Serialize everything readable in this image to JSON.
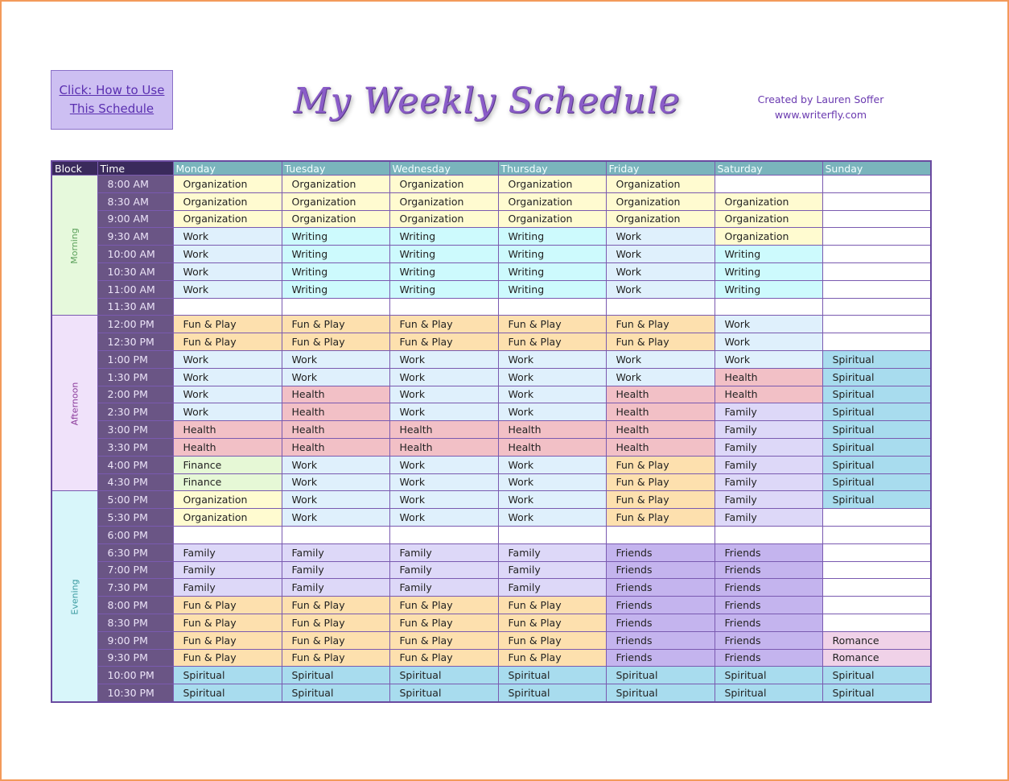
{
  "how_to": {
    "line1": "Click:  How to Use",
    "line2": "This Schedule"
  },
  "title": "My Weekly Schedule",
  "credit": {
    "line1": "Created by Lauren Soffer",
    "line2": "www.writerfly.com"
  },
  "headers": {
    "block": "Block",
    "time": "Time",
    "days": [
      "Monday",
      "Tuesday",
      "Wednesday",
      "Thursday",
      "Friday",
      "Saturday",
      "Sunday"
    ]
  },
  "blocks": [
    {
      "label": "Morning",
      "rows": 8,
      "color": "#e6f9dc",
      "text_color": "#5aa05a"
    },
    {
      "label": "Afternoon",
      "rows": 10,
      "color": "#f0e2fa",
      "text_color": "#8a3a9a"
    },
    {
      "label": "Evening",
      "rows": 12,
      "color": "#d8f6fa",
      "text_color": "#3a9aa0"
    }
  ],
  "activity_colors": {
    "Organization": "#fffbd0",
    "Work": "#dff0fc",
    "Writing": "#cdfafd",
    "Fun & Play": "#fde0ae",
    "Health": "#f2c0c6",
    "Finance": "#e6f8d6",
    "Family": "#ddd8f8",
    "Friends": "#c4b4ee",
    "Spiritual": "#a8dcee",
    "Romance": "#f0d2e8",
    "": "#ffffff"
  },
  "rows": [
    {
      "time": "8:00 AM",
      "cells": [
        "Organization",
        "Organization",
        "Organization",
        "Organization",
        "Organization",
        "",
        ""
      ]
    },
    {
      "time": "8:30 AM",
      "cells": [
        "Organization",
        "Organization",
        "Organization",
        "Organization",
        "Organization",
        "Organization",
        ""
      ]
    },
    {
      "time": "9:00 AM",
      "cells": [
        "Organization",
        "Organization",
        "Organization",
        "Organization",
        "Organization",
        "Organization",
        ""
      ]
    },
    {
      "time": "9:30 AM",
      "cells": [
        "Work",
        "Writing",
        "Writing",
        "Writing",
        "Work",
        "Organization",
        ""
      ]
    },
    {
      "time": "10:00 AM",
      "cells": [
        "Work",
        "Writing",
        "Writing",
        "Writing",
        "Work",
        "Writing",
        ""
      ]
    },
    {
      "time": "10:30 AM",
      "cells": [
        "Work",
        "Writing",
        "Writing",
        "Writing",
        "Work",
        "Writing",
        ""
      ]
    },
    {
      "time": "11:00 AM",
      "cells": [
        "Work",
        "Writing",
        "Writing",
        "Writing",
        "Work",
        "Writing",
        ""
      ]
    },
    {
      "time": "11:30 AM",
      "cells": [
        "",
        "",
        "",
        "",
        "",
        "",
        ""
      ]
    },
    {
      "time": "12:00 PM",
      "cells": [
        "Fun & Play",
        "Fun & Play",
        "Fun & Play",
        "Fun & Play",
        "Fun & Play",
        "Work",
        ""
      ]
    },
    {
      "time": "12:30 PM",
      "cells": [
        "Fun & Play",
        "Fun & Play",
        "Fun & Play",
        "Fun & Play",
        "Fun & Play",
        "Work",
        ""
      ]
    },
    {
      "time": "1:00 PM",
      "cells": [
        "Work",
        "Work",
        "Work",
        "Work",
        "Work",
        "Work",
        "Spiritual"
      ]
    },
    {
      "time": "1:30 PM",
      "cells": [
        "Work",
        "Work",
        "Work",
        "Work",
        "Work",
        "Health",
        "Spiritual"
      ]
    },
    {
      "time": "2:00 PM",
      "cells": [
        "Work",
        "Health",
        "Work",
        "Work",
        "Health",
        "Health",
        "Spiritual"
      ]
    },
    {
      "time": "2:30 PM",
      "cells": [
        "Work",
        "Health",
        "Work",
        "Work",
        "Health",
        "Family",
        "Spiritual"
      ]
    },
    {
      "time": "3:00 PM",
      "cells": [
        "Health",
        "Health",
        "Health",
        "Health",
        "Health",
        "Family",
        "Spiritual"
      ]
    },
    {
      "time": "3:30 PM",
      "cells": [
        "Health",
        "Health",
        "Health",
        "Health",
        "Health",
        "Family",
        "Spiritual"
      ]
    },
    {
      "time": "4:00 PM",
      "cells": [
        "Finance",
        "Work",
        "Work",
        "Work",
        "Fun & Play",
        "Family",
        "Spiritual"
      ]
    },
    {
      "time": "4:30 PM",
      "cells": [
        "Finance",
        "Work",
        "Work",
        "Work",
        "Fun & Play",
        "Family",
        "Spiritual"
      ]
    },
    {
      "time": "5:00 PM",
      "cells": [
        "Organization",
        "Work",
        "Work",
        "Work",
        "Fun & Play",
        "Family",
        "Spiritual"
      ]
    },
    {
      "time": "5:30 PM",
      "cells": [
        "Organization",
        "Work",
        "Work",
        "Work",
        "Fun & Play",
        "Family",
        ""
      ]
    },
    {
      "time": "6:00 PM",
      "cells": [
        "",
        "",
        "",
        "",
        "",
        "",
        ""
      ]
    },
    {
      "time": "6:30 PM",
      "cells": [
        "Family",
        "Family",
        "Family",
        "Family",
        "Friends",
        "Friends",
        ""
      ]
    },
    {
      "time": "7:00 PM",
      "cells": [
        "Family",
        "Family",
        "Family",
        "Family",
        "Friends",
        "Friends",
        ""
      ]
    },
    {
      "time": "7:30 PM",
      "cells": [
        "Family",
        "Family",
        "Family",
        "Family",
        "Friends",
        "Friends",
        ""
      ]
    },
    {
      "time": "8:00 PM",
      "cells": [
        "Fun & Play",
        "Fun & Play",
        "Fun & Play",
        "Fun & Play",
        "Friends",
        "Friends",
        ""
      ]
    },
    {
      "time": "8:30 PM",
      "cells": [
        "Fun & Play",
        "Fun & Play",
        "Fun & Play",
        "Fun & Play",
        "Friends",
        "Friends",
        ""
      ]
    },
    {
      "time": "9:00 PM",
      "cells": [
        "Fun & Play",
        "Fun & Play",
        "Fun & Play",
        "Fun & Play",
        "Friends",
        "Friends",
        "Romance"
      ]
    },
    {
      "time": "9:30 PM",
      "cells": [
        "Fun & Play",
        "Fun & Play",
        "Fun & Play",
        "Fun & Play",
        "Friends",
        "Friends",
        "Romance"
      ]
    },
    {
      "time": "10:00 PM",
      "cells": [
        "Spiritual",
        "Spiritual",
        "Spiritual",
        "Spiritual",
        "Spiritual",
        "Spiritual",
        "Spiritual"
      ]
    },
    {
      "time": "10:30 PM",
      "cells": [
        "Spiritual",
        "Spiritual",
        "Spiritual",
        "Spiritual",
        "Spiritual",
        "Spiritual",
        "Spiritual"
      ]
    }
  ]
}
